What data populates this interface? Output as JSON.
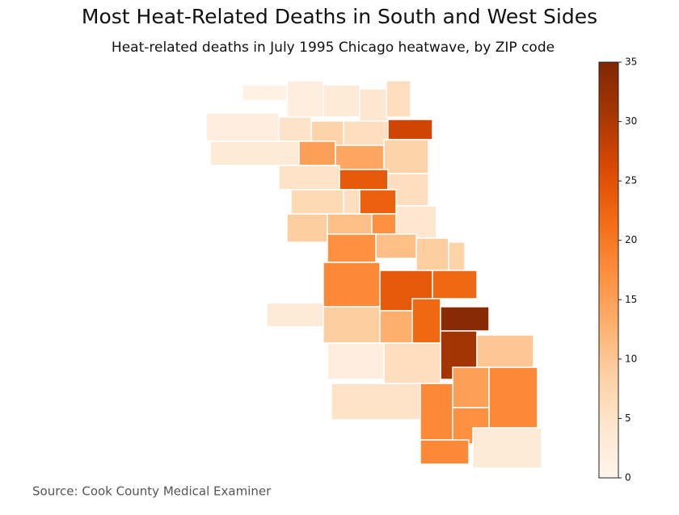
{
  "chart_data": {
    "type": "choropleth",
    "title": "Most Heat-Related Deaths in South and West Sides",
    "subtitle": "Heat-related deaths in July 1995 Chicago heatwave, by ZIP code",
    "source": "Source: Cook County Medical Examiner",
    "colormap": [
      "#fff5eb",
      "#fee6ce",
      "#fdd0a2",
      "#fdae6b",
      "#fd8d3c",
      "#f16913",
      "#d94801",
      "#a63603",
      "#7f2704"
    ],
    "clim": [
      0,
      35
    ],
    "cticks": [
      0,
      5,
      10,
      15,
      20,
      25,
      30,
      35
    ],
    "values": [
      1,
      2,
      3,
      4,
      6,
      2,
      5,
      8,
      6,
      27,
      3,
      15,
      14,
      8,
      5,
      24,
      6,
      7,
      6,
      23,
      9,
      11,
      17,
      4,
      17,
      11,
      9,
      8,
      18,
      24,
      22,
      3,
      9,
      13,
      22,
      34,
      31,
      10,
      2,
      6,
      15,
      18,
      5,
      18,
      17,
      18,
      3
    ]
  }
}
